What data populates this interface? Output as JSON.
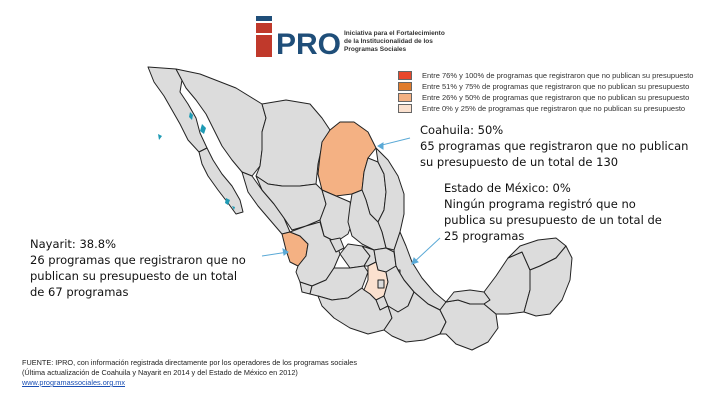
{
  "logo": {
    "wordmark": "PRO",
    "tagline": "Iniciativa para el Fortalecimiento\nde la Institucionalidad de los\nProgramas Sociales"
  },
  "colors": {
    "range_76_100": "#e8472b",
    "range_51_75": "#e07c2d",
    "range_26_50": "#f4b183",
    "range_0_25": "#fbe1cf",
    "no_data": "#dcdcdc",
    "logo_blue": "#1f4e79",
    "logo_red": "#c0392b",
    "water": "#1f9bb5"
  },
  "legend": {
    "items": [
      {
        "label": "Entre 76% y 100% de programas que registraron que no publican su presupuesto",
        "color": "#e8472b"
      },
      {
        "label": "Entre 51% y 75% de programas que registraron que no publican su presupuesto",
        "color": "#e07c2d"
      },
      {
        "label": "Entre 26% y 50% de programas que registraron que no publican su presupuesto",
        "color": "#f4b183"
      },
      {
        "label": "Entre 0% y 25% de programas que registraron que no publican su presupuesto",
        "color": "#fbe1cf"
      }
    ]
  },
  "annotations": {
    "coahuila": {
      "lines": [
        "Coahuila: 50%",
        "65 programas que registraron que no publican",
        "su presupuesto de un total de 130"
      ],
      "value_pct": 50
    },
    "edomex": {
      "lines": [
        "Estado de México: 0%",
        "Ningún programa registró que no",
        "publica su presupuesto de un total de",
        "25 programas"
      ],
      "value_pct": 0
    },
    "nayarit": {
      "lines": [
        "Nayarit: 38.8%",
        "26 programas que registraron que no",
        "publican su presupuesto de un total",
        "de 67 programas"
      ],
      "value_pct": 38.8
    }
  },
  "source": {
    "text": "FUENTE: IPRO, con información registrada directamente por los operadores de los programas sociales (Última actualización de Coahuila y Nayarit en 2014 y del Estado de México en 2012) ",
    "link": "www.programassociales.org.mx"
  }
}
